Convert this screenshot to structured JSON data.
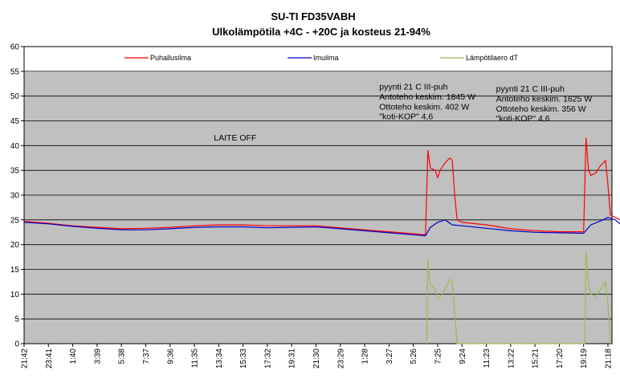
{
  "chart_data": {
    "type": "line",
    "title": "SU-TI FD35VABH",
    "subtitle": "Ulkolämpötila +4C - +20C ja kosteus 21-94%",
    "ylim": [
      0,
      60
    ],
    "y_ticks": [
      0,
      5,
      10,
      15,
      20,
      25,
      30,
      35,
      40,
      45,
      50,
      55,
      60
    ],
    "grid": true,
    "legend_position": "top",
    "plot_background": "#c0c0c0",
    "x_tick_labels": [
      "21:42",
      "23:41",
      "1:40",
      "3:39",
      "5:38",
      "7:37",
      "9:36",
      "11:35",
      "13:34",
      "15:33",
      "17:32",
      "19:31",
      "21:30",
      "23:29",
      "1:28",
      "3:27",
      "5:26",
      "7:25",
      "9:24",
      "11:23",
      "13:22",
      "15:21",
      "17:20",
      "19:19",
      "21:18"
    ],
    "series": [
      {
        "name": "Puhallusilma",
        "color": "#ff0000",
        "points": [
          [
            0,
            24.7
          ],
          [
            1,
            24.3
          ],
          [
            2,
            23.8
          ],
          [
            3,
            23.5
          ],
          [
            4,
            23.2
          ],
          [
            5,
            23.3
          ],
          [
            6,
            23.5
          ],
          [
            7,
            23.8
          ],
          [
            8,
            24.0
          ],
          [
            9,
            24.0
          ],
          [
            10,
            23.8
          ],
          [
            11,
            23.8
          ],
          [
            12,
            23.8
          ],
          [
            13,
            23.4
          ],
          [
            14,
            23.0
          ],
          [
            15,
            22.6
          ],
          [
            16,
            22.2
          ],
          [
            16.5,
            22.0
          ],
          [
            16.6,
            39.0
          ],
          [
            16.7,
            35.5
          ],
          [
            16.9,
            35.0
          ],
          [
            17.0,
            33.5
          ],
          [
            17.1,
            35.0
          ],
          [
            17.3,
            36.5
          ],
          [
            17.5,
            37.5
          ],
          [
            17.6,
            37.0
          ],
          [
            17.7,
            30.0
          ],
          [
            17.8,
            25.0
          ],
          [
            18,
            24.5
          ],
          [
            19,
            24.0
          ],
          [
            20,
            23.2
          ],
          [
            21,
            22.8
          ],
          [
            22,
            22.6
          ],
          [
            23,
            22.6
          ],
          [
            23.1,
            41.5
          ],
          [
            23.2,
            35.0
          ],
          [
            23.3,
            34.0
          ],
          [
            23.5,
            34.5
          ],
          [
            23.7,
            36.0
          ],
          [
            23.9,
            37.0
          ],
          [
            24.0,
            32.0
          ],
          [
            24.1,
            26.0
          ],
          [
            24.3,
            25.5
          ],
          [
            24.5,
            25.0
          ]
        ]
      },
      {
        "name": "Imuilma",
        "color": "#0000cc",
        "points": [
          [
            0,
            24.5
          ],
          [
            1,
            24.2
          ],
          [
            2,
            23.7
          ],
          [
            3,
            23.3
          ],
          [
            4,
            23.0
          ],
          [
            5,
            23.0
          ],
          [
            6,
            23.2
          ],
          [
            7,
            23.5
          ],
          [
            8,
            23.6
          ],
          [
            9,
            23.6
          ],
          [
            10,
            23.4
          ],
          [
            11,
            23.5
          ],
          [
            12,
            23.6
          ],
          [
            13,
            23.2
          ],
          [
            14,
            22.8
          ],
          [
            15,
            22.4
          ],
          [
            16,
            22.0
          ],
          [
            16.5,
            21.8
          ],
          [
            16.7,
            23.5
          ],
          [
            17.0,
            24.5
          ],
          [
            17.3,
            25.0
          ],
          [
            17.6,
            24.0
          ],
          [
            18,
            23.8
          ],
          [
            19,
            23.3
          ],
          [
            20,
            22.8
          ],
          [
            21,
            22.5
          ],
          [
            22,
            22.4
          ],
          [
            23,
            22.3
          ],
          [
            23.3,
            24.0
          ],
          [
            23.7,
            24.8
          ],
          [
            24.0,
            25.5
          ],
          [
            24.3,
            25.0
          ],
          [
            24.5,
            24.2
          ]
        ]
      },
      {
        "name": "Lämpötilaero dT",
        "color": "#99bb55",
        "points": [
          [
            16.55,
            0
          ],
          [
            16.6,
            17.0
          ],
          [
            16.7,
            12.0
          ],
          [
            16.9,
            11.0
          ],
          [
            17.0,
            9.0
          ],
          [
            17.2,
            10.0
          ],
          [
            17.4,
            12.0
          ],
          [
            17.5,
            13.0
          ],
          [
            17.6,
            12.5
          ],
          [
            17.7,
            6.0
          ],
          [
            17.8,
            0
          ],
          [
            23.05,
            0
          ],
          [
            23.1,
            18.5
          ],
          [
            23.2,
            12.0
          ],
          [
            23.3,
            10.0
          ],
          [
            23.5,
            9.5
          ],
          [
            23.7,
            11.0
          ],
          [
            23.9,
            12.5
          ],
          [
            24.0,
            8.0
          ],
          [
            24.1,
            0
          ]
        ]
      }
    ],
    "annotations": [
      {
        "text": "LAITE OFF",
        "x": 7.8,
        "y": 41
      },
      {
        "text": "pyynti 21 C III-puh",
        "x": 14.6,
        "y": 51.3
      },
      {
        "text": "Antoteho keskim. 1845 W",
        "x": 14.6,
        "y": 49.3
      },
      {
        "text": "Ottoteho keskim. 402 W",
        "x": 14.6,
        "y": 47.3
      },
      {
        "text": "\"koti-KOP\" 4,6",
        "x": 14.6,
        "y": 45.3
      },
      {
        "text": "pyynti 21 C III-puh",
        "x": 19.4,
        "y": 50.9
      },
      {
        "text": "Antoteho keskim. 1625 W",
        "x": 19.4,
        "y": 48.9
      },
      {
        "text": "Ottoteho keskim. 356 W",
        "x": 19.4,
        "y": 46.9
      },
      {
        "text": "\"koti-KOP\" 4,6",
        "x": 19.4,
        "y": 44.9
      }
    ]
  }
}
